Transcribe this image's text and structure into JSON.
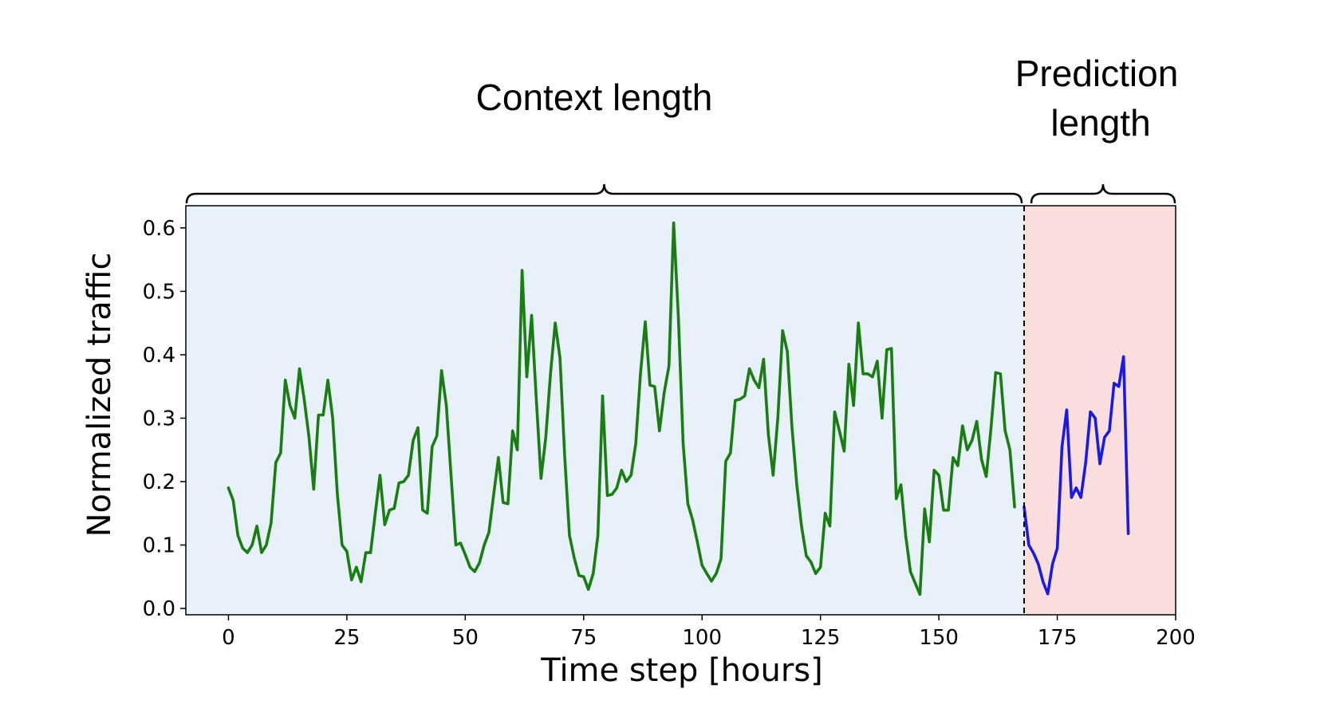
{
  "annotations": {
    "context_label": "Context length",
    "prediction_label_line1": "Prediction",
    "prediction_label_line2": "length"
  },
  "chart_data": {
    "type": "line",
    "title": "",
    "xlabel": "Time step [hours]",
    "ylabel": "Normalized traffic",
    "xlim": [
      -9,
      200
    ],
    "ylim": [
      -0.01,
      0.635
    ],
    "xticks": [
      0,
      25,
      50,
      75,
      100,
      125,
      150,
      175,
      200
    ],
    "xtick_labels": [
      "0",
      "25",
      "50",
      "75",
      "100",
      "125",
      "150",
      "175",
      "200"
    ],
    "yticks": [
      0.0,
      0.1,
      0.2,
      0.3,
      0.4,
      0.5,
      0.6
    ],
    "ytick_labels": [
      "0.0",
      "0.1",
      "0.2",
      "0.3",
      "0.4",
      "0.5",
      "0.6"
    ],
    "grid": false,
    "split_x": 168,
    "regions": [
      {
        "name": "context",
        "from": -9,
        "to": 168,
        "color": "#e8f0fa"
      },
      {
        "name": "prediction",
        "from": 168,
        "to": 200,
        "color": "#fadede"
      }
    ],
    "series": [
      {
        "color": "#1a7d14",
        "x_start": 0,
        "values": [
          0.19,
          0.17,
          0.115,
          0.095,
          0.088,
          0.1,
          0.13,
          0.088,
          0.1,
          0.135,
          0.23,
          0.245,
          0.36,
          0.32,
          0.3,
          0.378,
          0.33,
          0.27,
          0.188,
          0.305,
          0.305,
          0.36,
          0.3,
          0.18,
          0.1,
          0.09,
          0.045,
          0.065,
          0.042,
          0.088,
          0.088,
          0.15,
          0.21,
          0.132,
          0.155,
          0.158,
          0.198,
          0.2,
          0.21,
          0.265,
          0.285,
          0.155,
          0.15,
          0.255,
          0.272,
          0.375,
          0.32,
          0.21,
          0.1,
          0.103,
          0.085,
          0.065,
          0.058,
          0.072,
          0.1,
          0.12,
          0.18,
          0.238,
          0.167,
          0.165,
          0.28,
          0.25,
          0.533,
          0.365,
          0.462,
          0.33,
          0.205,
          0.27,
          0.37,
          0.45,
          0.395,
          0.24,
          0.115,
          0.08,
          0.052,
          0.05,
          0.03,
          0.055,
          0.115,
          0.335,
          0.178,
          0.18,
          0.19,
          0.218,
          0.2,
          0.21,
          0.26,
          0.37,
          0.452,
          0.352,
          0.35,
          0.28,
          0.34,
          0.382,
          0.608,
          0.46,
          0.26,
          0.165,
          0.14,
          0.105,
          0.068,
          0.055,
          0.043,
          0.055,
          0.078,
          0.232,
          0.245,
          0.328,
          0.33,
          0.335,
          0.378,
          0.36,
          0.348,
          0.393,
          0.275,
          0.21,
          0.3,
          0.438,
          0.405,
          0.285,
          0.195,
          0.13,
          0.083,
          0.073,
          0.055,
          0.065,
          0.15,
          0.13,
          0.31,
          0.28,
          0.248,
          0.385,
          0.32,
          0.45,
          0.37,
          0.37,
          0.365,
          0.39,
          0.3,
          0.408,
          0.41,
          0.173,
          0.195,
          0.115,
          0.058,
          0.04,
          0.022,
          0.157,
          0.105,
          0.218,
          0.21,
          0.155,
          0.155,
          0.238,
          0.225,
          0.288,
          0.25,
          0.265,
          0.295,
          0.235,
          0.208,
          0.283,
          0.372,
          0.37,
          0.28,
          0.25,
          0.16
        ]
      },
      {
        "color": "#1a1ae6",
        "x_start": 168,
        "values": [
          0.16,
          0.1,
          0.087,
          0.07,
          0.042,
          0.023,
          0.07,
          0.095,
          0.255,
          0.313,
          0.175,
          0.19,
          0.175,
          0.23,
          0.31,
          0.3,
          0.228,
          0.27,
          0.28,
          0.355,
          0.35,
          0.397,
          0.118
        ]
      }
    ]
  }
}
